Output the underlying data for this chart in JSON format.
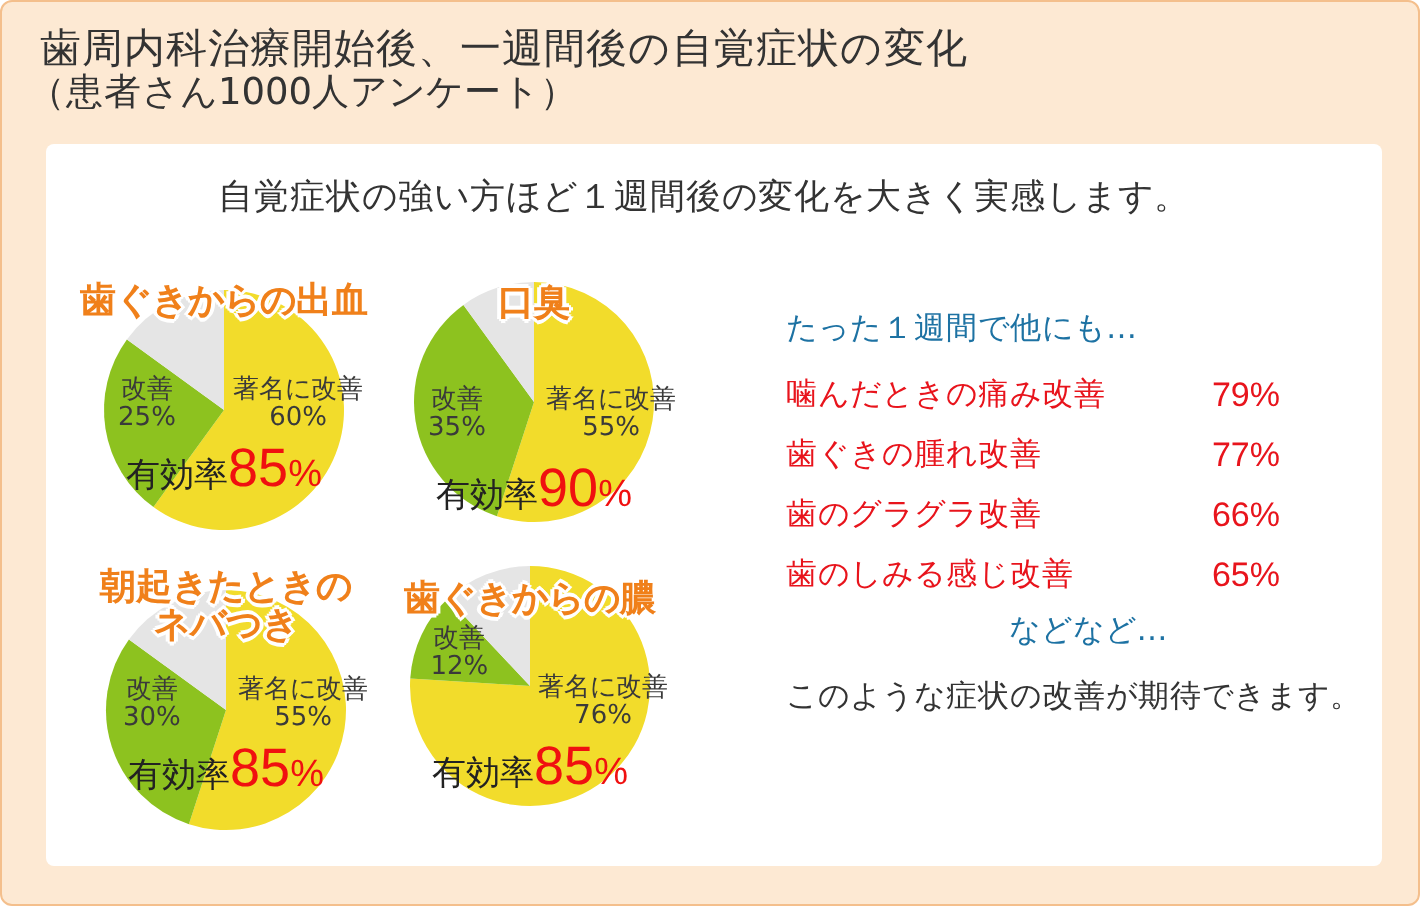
{
  "chart_data": [
    {
      "type": "other",
      "title": "歯周内科治療開始後、一週間後の自覚症状の変化",
      "subtitle": "（患者さん1000人アンケート）",
      "annotations": [
        "自覚症状の強い方ほど１週間後の変化を大きく実感します。"
      ]
    },
    {
      "type": "pie",
      "title": "歯ぐきからの出血",
      "categories": [
        "著名に改善",
        "改善",
        null
      ],
      "values": [
        60,
        25,
        15
      ],
      "colors": [
        "#f2dc2b",
        "#8dc21f",
        "#e5e5e5"
      ],
      "value_labels": [
        "60%",
        "25%",
        null
      ],
      "annotations": [
        "有効率85%"
      ]
    },
    {
      "type": "pie",
      "title": "口臭",
      "categories": [
        "著名に改善",
        "改善",
        null
      ],
      "values": [
        55,
        35,
        10
      ],
      "colors": [
        "#f2dc2b",
        "#8dc21f",
        "#e5e5e5"
      ],
      "value_labels": [
        "55%",
        "35%",
        null
      ],
      "annotations": [
        "有効率90%"
      ]
    },
    {
      "type": "pie",
      "title": "朝起きたときのネバつき",
      "categories": [
        "著名に改善",
        "改善",
        null
      ],
      "values": [
        55,
        30,
        15
      ],
      "colors": [
        "#f2dc2b",
        "#8dc21f",
        "#e5e5e5"
      ],
      "value_labels": [
        "55%",
        "30%",
        null
      ],
      "annotations": [
        "有効率85%"
      ]
    },
    {
      "type": "pie",
      "title": "歯ぐきからの膿",
      "categories": [
        "著名に改善",
        "改善",
        null
      ],
      "values": [
        76,
        12,
        12
      ],
      "colors": [
        "#f2dc2b",
        "#8dc21f",
        "#e5e5e5"
      ],
      "value_labels": [
        "76%",
        "12%",
        null
      ],
      "annotations": [
        "有効率85%"
      ]
    },
    {
      "type": "other",
      "title": "たった１週間で他にも…",
      "categories": [
        "噛んだときの痛み改善",
        "歯ぐきの腫れ改善",
        "歯のグラグラ改善",
        "歯のしみる感じ改善"
      ],
      "values": [
        79,
        77,
        66,
        65
      ],
      "value_labels": [
        "79%",
        "77%",
        "66%",
        "65%"
      ],
      "annotations": [
        "などなど…",
        "このような症状の改善が期待できます。"
      ]
    }
  ]
}
